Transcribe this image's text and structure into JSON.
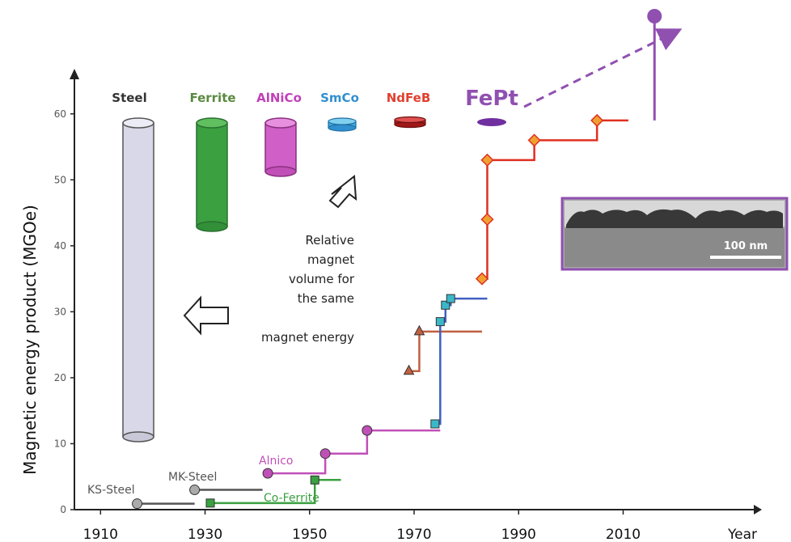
{
  "chart_data": {
    "type": "line",
    "xlabel": "Year",
    "ylabel": "Magnetic energy product (MGOe)",
    "xlim": [
      1905,
      2035
    ],
    "ylim": [
      0,
      65
    ],
    "xticks": [
      1910,
      1930,
      1950,
      1970,
      1990,
      2010
    ],
    "yticks": [
      0,
      10,
      20,
      30,
      40,
      50,
      60
    ],
    "series": [
      {
        "name": "KS-Steel",
        "color": "#555555",
        "marker": "circle",
        "points": [
          [
            1917,
            0.9
          ]
        ],
        "step_to": 1928
      },
      {
        "name": "MK-Steel",
        "color": "#555555",
        "marker": "circle",
        "points": [
          [
            1928,
            3
          ]
        ],
        "step_to": 1941
      },
      {
        "name": "Co-Ferrite",
        "color": "#3aa040",
        "marker": "square",
        "points": [
          [
            1931,
            1
          ],
          [
            1951,
            4.5
          ]
        ],
        "step_to": 1956
      },
      {
        "name": "Alnico",
        "color": "#c050b8",
        "marker": "circle",
        "points": [
          [
            1942,
            5.5
          ],
          [
            1953,
            8.5
          ],
          [
            1961,
            12
          ]
        ],
        "step_to": 1975
      },
      {
        "name": "",
        "color": "#c06040",
        "marker": "triangle",
        "points": [
          [
            1969,
            21
          ],
          [
            1971,
            27
          ]
        ],
        "step_to": 1983
      },
      {
        "name": "",
        "color": "#4060c0",
        "marker": "square",
        "fill": "#3ab8c8",
        "points": [
          [
            1974,
            13
          ],
          [
            1975,
            28.5
          ],
          [
            1976,
            31
          ],
          [
            1977,
            32
          ]
        ],
        "step_to": 1984
      },
      {
        "name": "",
        "color": "#e03020",
        "marker": "diamond",
        "fill": "#f0a030",
        "points": [
          [
            1983,
            35
          ],
          [
            1984,
            44
          ],
          [
            1984,
            53
          ],
          [
            1993,
            56
          ],
          [
            2005,
            59
          ]
        ],
        "step_to": 2011
      }
    ],
    "projection": {
      "name": "FePt",
      "color": "#9050b0",
      "x": 2016,
      "y": 59
    },
    "cylinders": [
      {
        "label": "Steel",
        "color": "#333333",
        "body": "#d8d8e8"
      },
      {
        "label": "Ferrite",
        "color": "#5a8a40",
        "body": "#3aa040"
      },
      {
        "label": "AlNiCo",
        "color": "#c040b8",
        "body": "#d060c8"
      },
      {
        "label": "SmCo",
        "color": "#3090d0",
        "body": "#40a8e0"
      },
      {
        "label": "NdFeB",
        "color": "#e04030",
        "body": "#b02020"
      },
      {
        "label": "FePt",
        "color": "#9050b0",
        "body": "#7030a0"
      }
    ],
    "annotation": [
      "Relative",
      "magnet",
      "volume for",
      "the same",
      "magnet energy"
    ],
    "inset": {
      "scale_bar": "100 nm"
    }
  }
}
